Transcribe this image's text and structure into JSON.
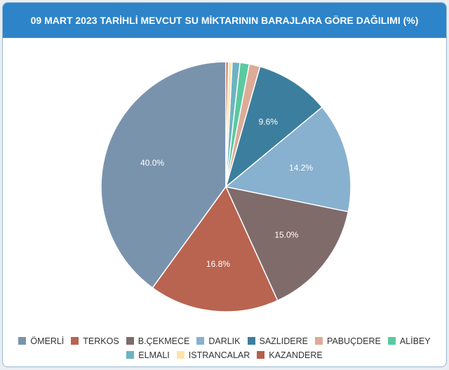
{
  "chart_data": {
    "type": "pie",
    "title": "09 MART 2023 TARİHLİ MEVCUT SU MİKTARININ BARAJLARA GÖRE DAĞILIMI (%)",
    "categories": [
      "ÖMERLİ",
      "TERKOS",
      "B.ÇEKMECE",
      "DARLIK",
      "SAZLIDERE",
      "PABUÇDERE",
      "ALİBEY",
      "ELMALI",
      "ISTRANCALAR",
      "KAZANDERE"
    ],
    "values": [
      40.0,
      16.8,
      15.0,
      14.2,
      9.6,
      1.4,
      1.2,
      1.0,
      0.5,
      0.3
    ],
    "data_labels": [
      "40.0%",
      "16.8%",
      "15.0%",
      "14.2%",
      "9.6%",
      "",
      "",
      "",
      "",
      ""
    ],
    "colors": [
      "#7a93ad",
      "#b86450",
      "#806b6b",
      "#87b1cf",
      "#3c7e9e",
      "#ddab98",
      "#5ac9a0",
      "#6db3c3",
      "#fde4a8",
      "#b5604a"
    ],
    "direction": "counterclockwise from top",
    "legend_position": "bottom"
  }
}
